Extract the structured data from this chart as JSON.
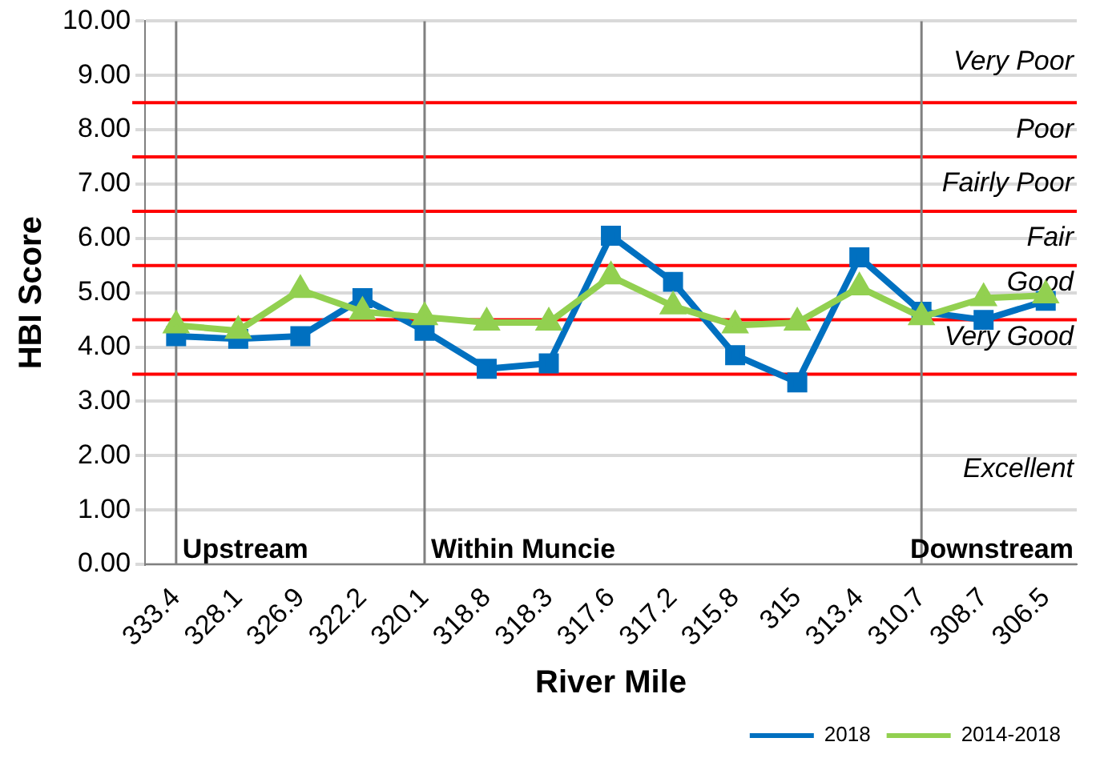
{
  "chart_data": {
    "type": "line",
    "xlabel": "River Mile",
    "ylabel": "HBI Score",
    "categories": [
      "333.4",
      "328.1",
      "326.9",
      "322.2",
      "320.1",
      "318.8",
      "318.3",
      "317.6",
      "317.2",
      "315.8",
      "315",
      "313.4",
      "310.7",
      "308.7",
      "306.5"
    ],
    "series": [
      {
        "name": "2018",
        "color": "#0070c0",
        "marker": "square",
        "values": [
          4.2,
          4.15,
          4.2,
          4.9,
          4.3,
          3.6,
          3.7,
          6.05,
          5.2,
          3.85,
          3.35,
          5.65,
          4.65,
          4.5,
          4.85
        ]
      },
      {
        "name": "2014-2018",
        "color": "#92d050",
        "marker": "triangle",
        "values": [
          4.4,
          4.3,
          5.05,
          4.65,
          4.55,
          4.45,
          4.45,
          5.3,
          4.75,
          4.4,
          4.45,
          5.1,
          4.55,
          4.9,
          4.95
        ]
      }
    ],
    "ylim": [
      0,
      10
    ],
    "yticks": [
      {
        "value": 0,
        "label": "0.00"
      },
      {
        "value": 1,
        "label": "1.00"
      },
      {
        "value": 2,
        "label": "2.00"
      },
      {
        "value": 3,
        "label": "3.00"
      },
      {
        "value": 4,
        "label": "4.00"
      },
      {
        "value": 5,
        "label": "5.00"
      },
      {
        "value": 6,
        "label": "6.00"
      },
      {
        "value": 7,
        "label": "7.00"
      },
      {
        "value": 8,
        "label": "8.00"
      },
      {
        "value": 9,
        "label": "9.00"
      },
      {
        "value": 10,
        "label": "10.00"
      }
    ],
    "grid": "y",
    "legend": "bottom right",
    "line_style": "solid",
    "ref_lines": [
      {
        "axis": "y",
        "value": 3.5,
        "color": "#ff0000"
      },
      {
        "axis": "y",
        "value": 4.5,
        "color": "#ff0000"
      },
      {
        "axis": "y",
        "value": 5.5,
        "color": "#ff0000"
      },
      {
        "axis": "y",
        "value": 6.5,
        "color": "#ff0000"
      },
      {
        "axis": "y",
        "value": 7.5,
        "color": "#ff0000"
      },
      {
        "axis": "y",
        "value": 8.5,
        "color": "#ff0000"
      },
      {
        "axis": "x",
        "value": "333.4",
        "label": "Upstream",
        "color": "#808080"
      },
      {
        "axis": "x",
        "value": "320.1",
        "label": "Within Muncie",
        "color": "#808080"
      },
      {
        "axis": "x",
        "value": "310.7",
        "label": "Downstream",
        "color": "#808080"
      }
    ],
    "annotations": [
      "Excellent",
      "Very Good",
      "Good",
      "Fair",
      "Fairly Poor",
      "Poor",
      "Very Poor"
    ]
  }
}
